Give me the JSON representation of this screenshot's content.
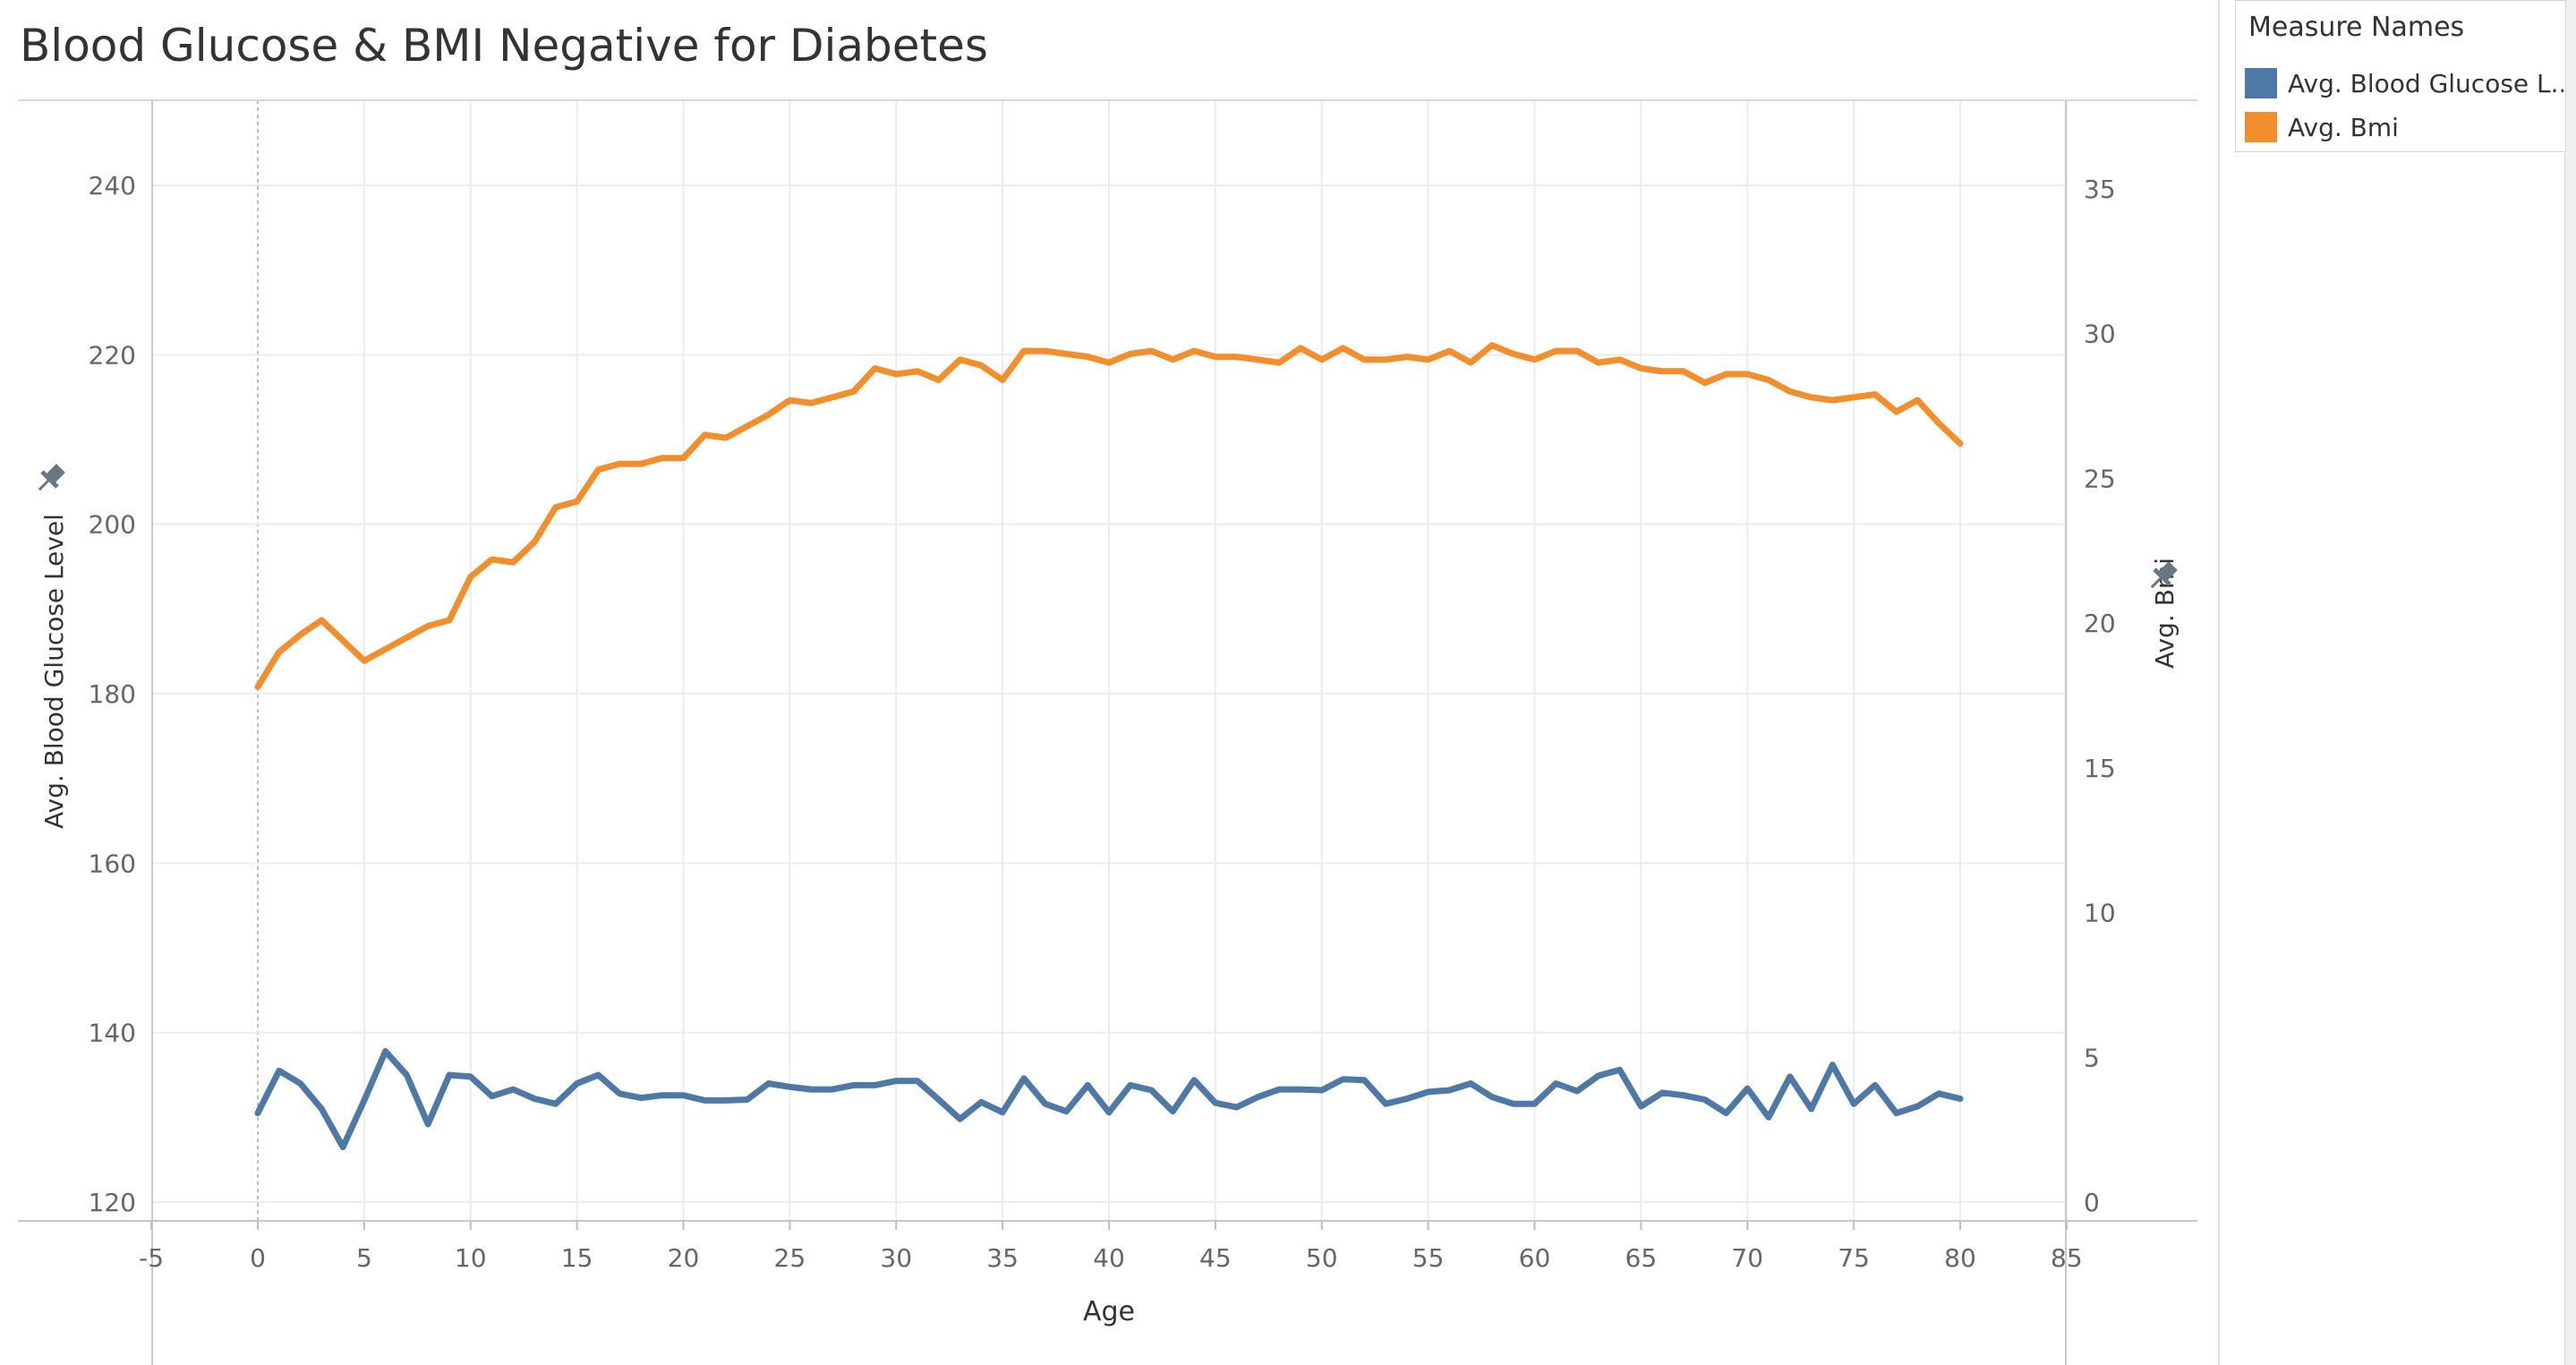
{
  "title": "Blood Glucose & BMI Negative for Diabetes",
  "legend": {
    "title": "Measure Names",
    "items": [
      {
        "label": "Avg. Blood Glucose L..",
        "color": "#4e79a7"
      },
      {
        "label": "Avg. Bmi",
        "color": "#f28e2b"
      }
    ]
  },
  "chart_data": {
    "type": "line",
    "title": "Blood Glucose & BMI Negative for Diabetes",
    "xlabel": "Age",
    "y_left_label": "Avg. Blood Glucose Level",
    "y_right_label": "Avg. Bmi",
    "xlim": [
      -5,
      85
    ],
    "x_ticks": [
      -5,
      0,
      5,
      10,
      15,
      20,
      25,
      30,
      35,
      40,
      45,
      50,
      55,
      60,
      65,
      70,
      75,
      80,
      85
    ],
    "y_left_lim": [
      120,
      240
    ],
    "y_left_ticks": [
      120,
      140,
      160,
      180,
      200,
      220,
      240
    ],
    "y_right_lim": [
      0,
      35
    ],
    "y_right_ticks": [
      0,
      5,
      10,
      15,
      20,
      25,
      30,
      35
    ],
    "grid": true,
    "legend_position": "top-right",
    "x": [
      0,
      1,
      2,
      3,
      4,
      5,
      6,
      7,
      8,
      9,
      10,
      11,
      12,
      13,
      14,
      15,
      16,
      17,
      18,
      19,
      20,
      21,
      22,
      23,
      24,
      25,
      26,
      27,
      28,
      29,
      30,
      31,
      32,
      33,
      34,
      35,
      36,
      37,
      38,
      39,
      40,
      41,
      42,
      43,
      44,
      45,
      46,
      47,
      48,
      49,
      50,
      51,
      52,
      53,
      54,
      55,
      56,
      57,
      58,
      59,
      60,
      61,
      62,
      63,
      64,
      65,
      66,
      67,
      68,
      69,
      70,
      71,
      72,
      73,
      74,
      75,
      76,
      77,
      78,
      79,
      80
    ],
    "series": [
      {
        "name": "Avg. Blood Glucose L..",
        "axis": "left",
        "color": "#4e79a7",
        "values": [
          130.5,
          135.5,
          134.0,
          131.0,
          126.5,
          132.0,
          137.8,
          135.0,
          129.2,
          135.0,
          134.8,
          132.5,
          133.3,
          132.2,
          131.6,
          134.0,
          135.0,
          132.8,
          132.3,
          132.6,
          132.6,
          132.0,
          132.0,
          132.1,
          134.0,
          133.6,
          133.3,
          133.3,
          133.8,
          133.8,
          134.3,
          134.3,
          132.1,
          129.8,
          131.8,
          130.6,
          134.6,
          131.6,
          130.7,
          133.8,
          130.6,
          133.8,
          133.2,
          130.7,
          134.4,
          131.7,
          131.2,
          132.4,
          133.3,
          133.3,
          133.2,
          134.5,
          134.4,
          131.6,
          132.2,
          133.0,
          133.2,
          134.0,
          132.4,
          131.6,
          131.6,
          134.0,
          133.1,
          134.9,
          135.6,
          131.3,
          132.9,
          132.6,
          132.1,
          130.5,
          133.4,
          130.0,
          134.8,
          131.0,
          136.2,
          131.6,
          133.8,
          130.5,
          131.3,
          132.8,
          132.2
        ]
      },
      {
        "name": "Avg. Bmi",
        "axis": "right",
        "color": "#f28e2b",
        "values": [
          17.8,
          19.0,
          19.6,
          20.1,
          19.4,
          18.7,
          19.1,
          19.5,
          19.9,
          20.1,
          21.6,
          22.2,
          22.1,
          22.8,
          24.0,
          24.2,
          25.3,
          25.5,
          25.5,
          25.7,
          25.7,
          26.5,
          26.4,
          26.8,
          27.2,
          27.7,
          27.6,
          27.8,
          28.0,
          28.8,
          28.6,
          28.7,
          28.4,
          29.1,
          28.9,
          28.4,
          29.4,
          29.4,
          29.3,
          29.2,
          29.0,
          29.3,
          29.4,
          29.1,
          29.4,
          29.2,
          29.2,
          29.1,
          29.0,
          29.5,
          29.1,
          29.5,
          29.1,
          29.1,
          29.2,
          29.1,
          29.4,
          29.0,
          29.6,
          29.3,
          29.1,
          29.4,
          29.4,
          29.0,
          29.1,
          28.8,
          28.7,
          28.7,
          28.3,
          28.6,
          28.6,
          28.4,
          28.0,
          27.8,
          27.7,
          27.8,
          27.9,
          27.3,
          27.7,
          26.9,
          26.2
        ]
      }
    ]
  }
}
